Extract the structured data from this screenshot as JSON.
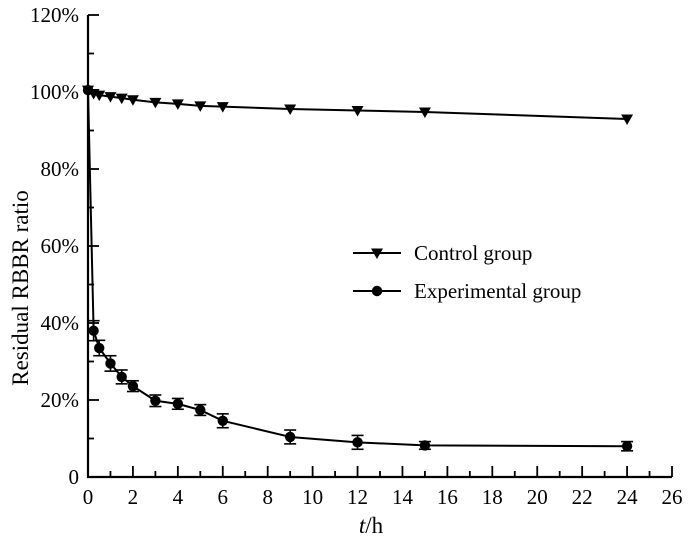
{
  "chart_data": {
    "type": "line",
    "title": "",
    "xlabel_italic": "t",
    "xlabel_unit": "/h",
    "ylabel": "Residual RBBR ratio",
    "xlim": [
      0,
      26
    ],
    "ylim": [
      0,
      120
    ],
    "x_major_ticks": [
      0,
      2,
      4,
      6,
      8,
      10,
      12,
      14,
      16,
      18,
      20,
      22,
      24,
      26
    ],
    "x_minor_step": 1,
    "y_major_ticks": [
      {
        "v": 0,
        "label": "0"
      },
      {
        "v": 20,
        "label": "20%"
      },
      {
        "v": 40,
        "label": "40%"
      },
      {
        "v": 60,
        "label": "60%"
      },
      {
        "v": 80,
        "label": "80%"
      },
      {
        "v": 100,
        "label": "100%"
      },
      {
        "v": 120,
        "label": "120%"
      }
    ],
    "y_minor_step": 10,
    "grid": false,
    "background": "#ffffff",
    "axis_color": "#000000",
    "legend_position": "center-right",
    "series": [
      {
        "name": "Control group",
        "marker": "triangle-down",
        "color": "#000000",
        "points": [
          {
            "t": 0,
            "v": 100.5,
            "err": 0
          },
          {
            "t": 0.25,
            "v": 99.6,
            "err": 0
          },
          {
            "t": 0.5,
            "v": 99.2,
            "err": 0
          },
          {
            "t": 1,
            "v": 98.8,
            "err": 0
          },
          {
            "t": 1.5,
            "v": 98.4,
            "err": 0
          },
          {
            "t": 2,
            "v": 98.0,
            "err": 0
          },
          {
            "t": 3,
            "v": 97.3,
            "err": 0
          },
          {
            "t": 4,
            "v": 96.9,
            "err": 0
          },
          {
            "t": 5,
            "v": 96.4,
            "err": 0
          },
          {
            "t": 6,
            "v": 96.2,
            "err": 0
          },
          {
            "t": 9,
            "v": 95.6,
            "err": 0
          },
          {
            "t": 12,
            "v": 95.2,
            "err": 0
          },
          {
            "t": 15,
            "v": 94.8,
            "err": 0
          },
          {
            "t": 24,
            "v": 93.0,
            "err": 0
          }
        ]
      },
      {
        "name": "Experimental group",
        "marker": "circle",
        "color": "#000000",
        "points": [
          {
            "t": 0,
            "v": 100.5,
            "err": 0
          },
          {
            "t": 0.25,
            "v": 38.0,
            "err": 2.6
          },
          {
            "t": 0.5,
            "v": 33.5,
            "err": 2.0
          },
          {
            "t": 1,
            "v": 29.5,
            "err": 2.0
          },
          {
            "t": 1.5,
            "v": 26.0,
            "err": 1.8
          },
          {
            "t": 2,
            "v": 23.6,
            "err": 1.4
          },
          {
            "t": 3,
            "v": 19.8,
            "err": 1.5
          },
          {
            "t": 4,
            "v": 19.0,
            "err": 1.4
          },
          {
            "t": 5,
            "v": 17.4,
            "err": 1.4
          },
          {
            "t": 6,
            "v": 14.6,
            "err": 1.8
          },
          {
            "t": 9,
            "v": 10.4,
            "err": 1.8
          },
          {
            "t": 12,
            "v": 9.0,
            "err": 1.8
          },
          {
            "t": 15,
            "v": 8.2,
            "err": 1.0
          },
          {
            "t": 24,
            "v": 8.0,
            "err": 1.2
          }
        ]
      }
    ]
  }
}
